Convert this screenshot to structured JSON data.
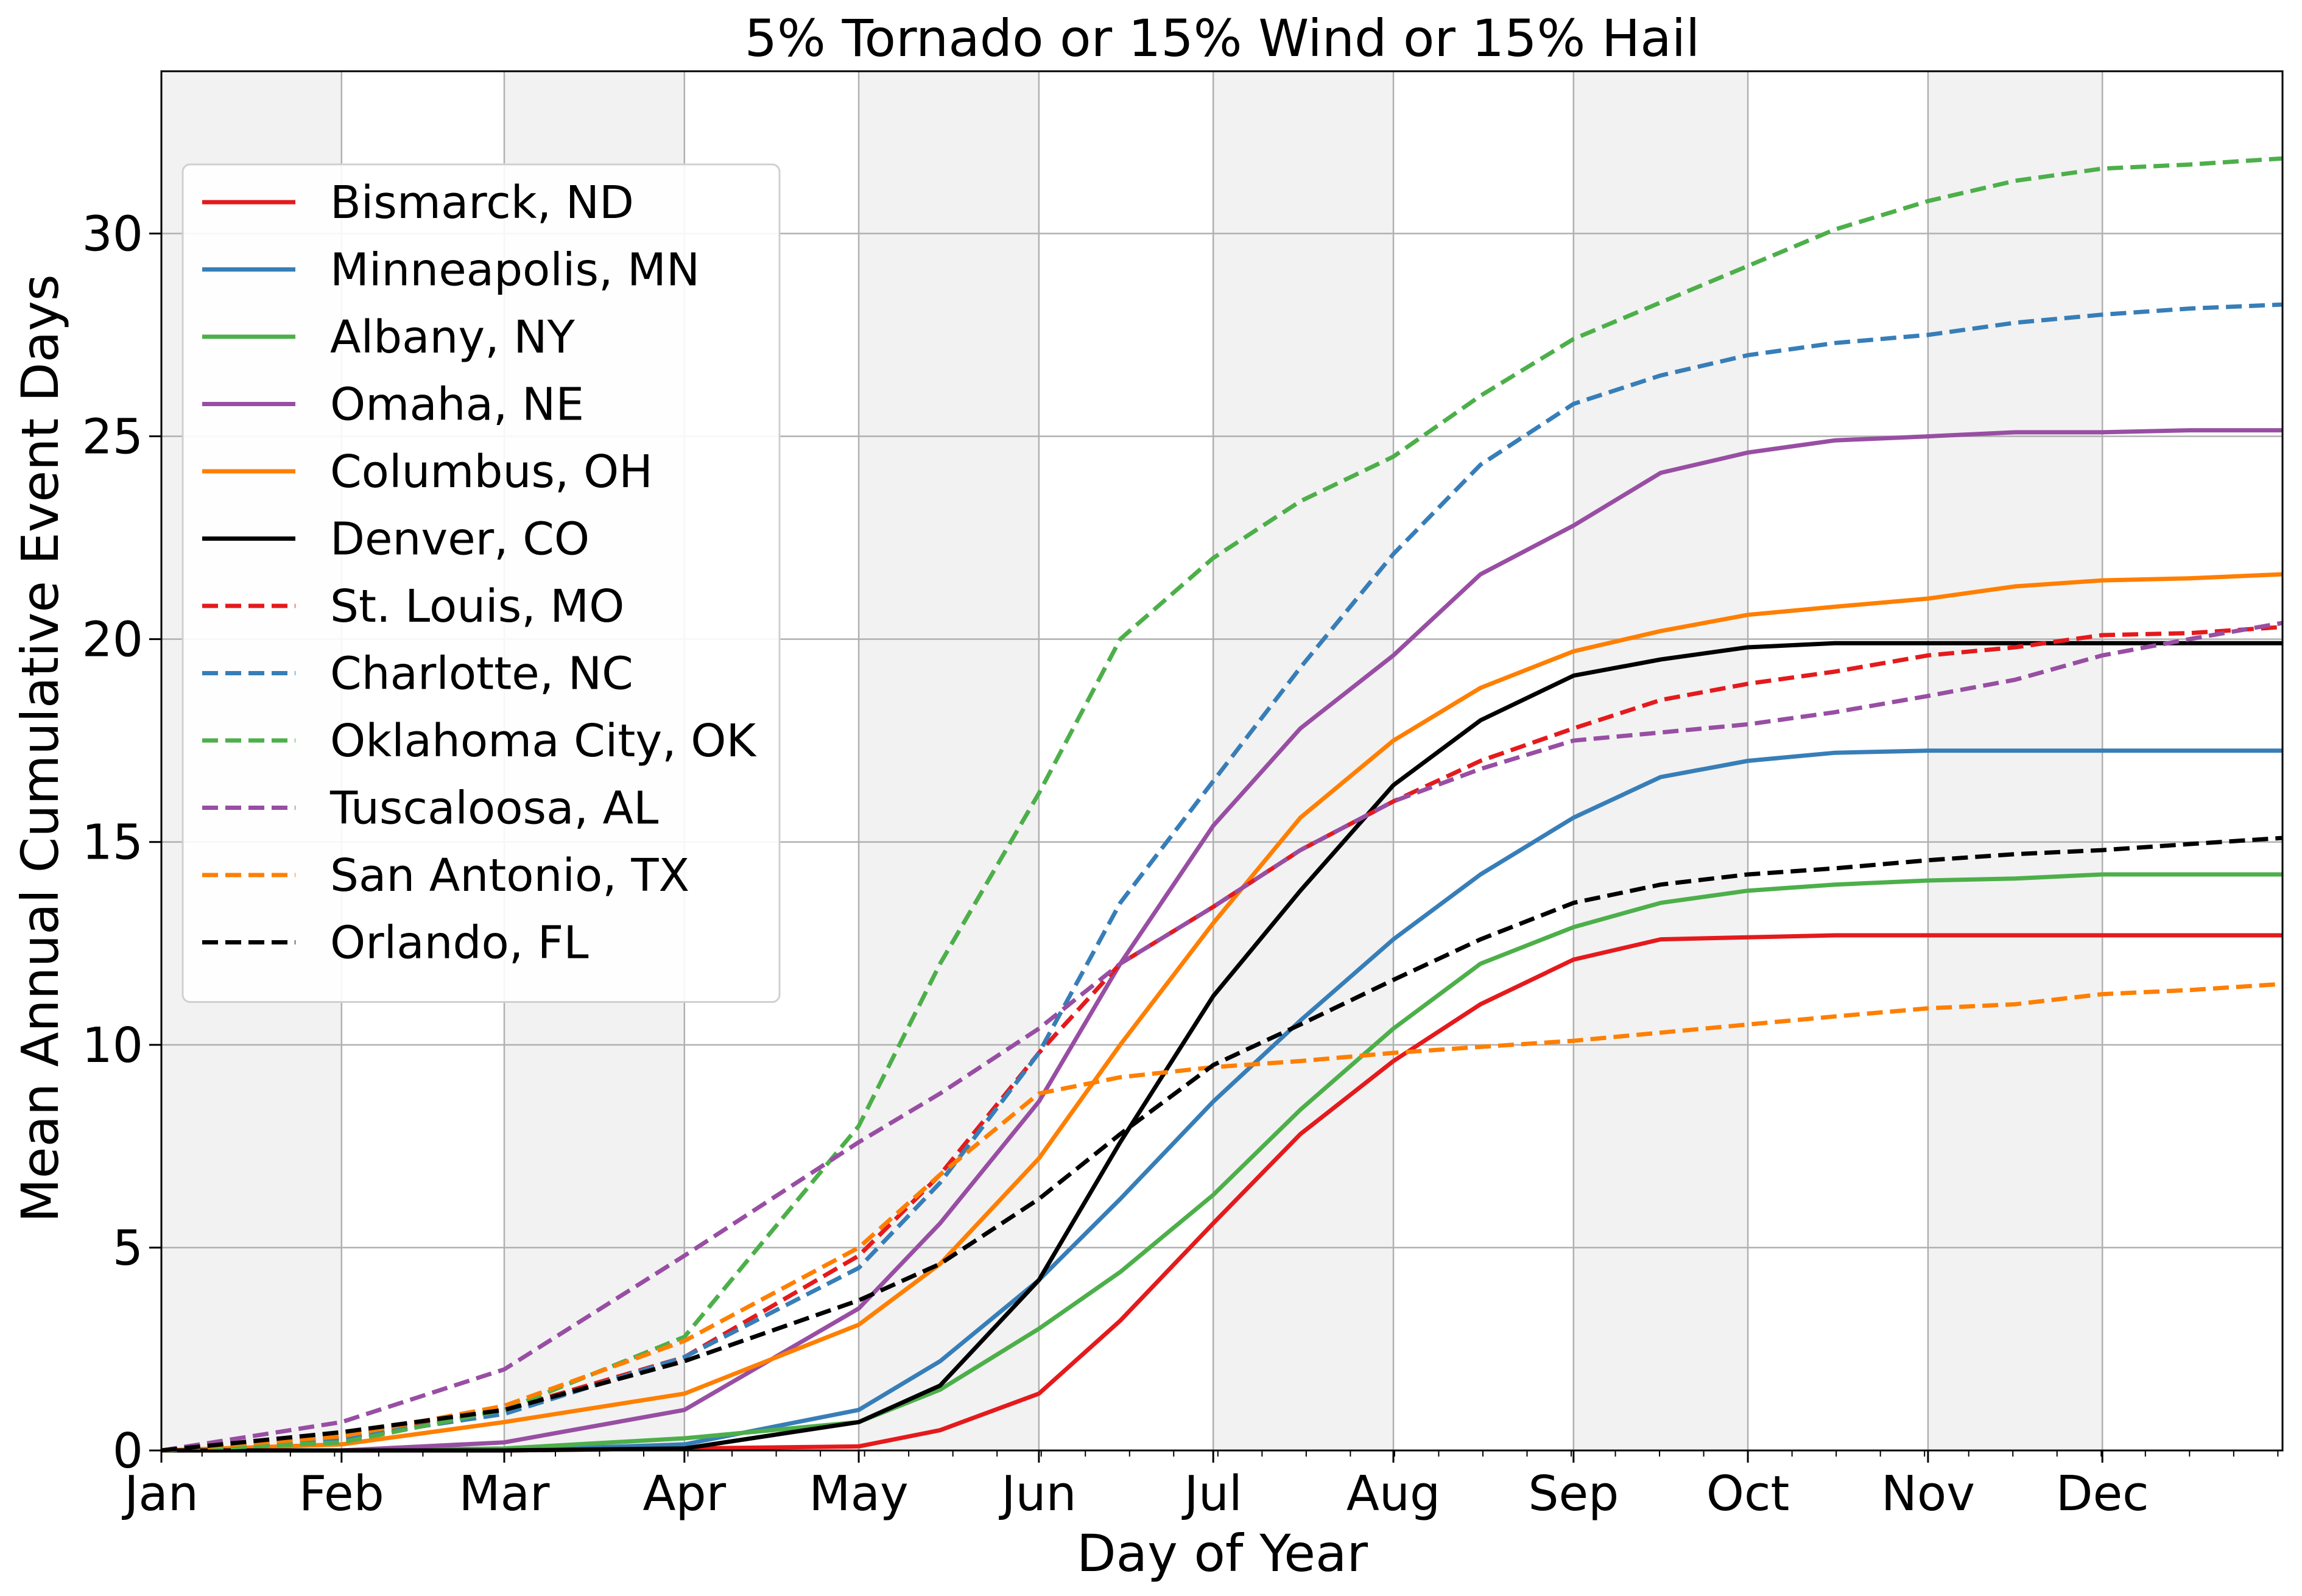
{
  "chart_data": {
    "type": "line",
    "title": "5% Tornado or 15% Wind or 15% Hail",
    "xlabel": "Day of Year",
    "ylabel": "Mean Annual Cumulative Event Days",
    "xlim": [
      1,
      366
    ],
    "ylim": [
      0,
      34
    ],
    "grid": true,
    "legend_position": "upper-left",
    "background_shading": "alternating months",
    "x_ticks": [
      {
        "label": "Jan",
        "day": 1
      },
      {
        "label": "Feb",
        "day": 32
      },
      {
        "label": "Mar",
        "day": 60
      },
      {
        "label": "Apr",
        "day": 91
      },
      {
        "label": "May",
        "day": 121
      },
      {
        "label": "Jun",
        "day": 152
      },
      {
        "label": "Jul",
        "day": 182
      },
      {
        "label": "Aug",
        "day": 213
      },
      {
        "label": "Sep",
        "day": 244
      },
      {
        "label": "Oct",
        "day": 274
      },
      {
        "label": "Nov",
        "day": 305
      },
      {
        "label": "Dec",
        "day": 335
      }
    ],
    "y_ticks": [
      0,
      5,
      10,
      15,
      20,
      25,
      30
    ],
    "x": [
      1,
      32,
      60,
      91,
      121,
      135,
      152,
      166,
      182,
      197,
      213,
      228,
      244,
      259,
      274,
      289,
      305,
      320,
      335,
      350,
      366
    ],
    "series": [
      {
        "name": "Bismarck, ND",
        "color": "#e41a1c",
        "dash": false,
        "values": [
          0,
          0,
          0,
          0.05,
          0.1,
          0.5,
          1.4,
          3.2,
          5.6,
          7.8,
          9.6,
          11.0,
          12.1,
          12.6,
          12.65,
          12.7,
          12.7,
          12.7,
          12.7,
          12.7,
          12.7
        ]
      },
      {
        "name": "Minneapolis, MN",
        "color": "#377eb8",
        "dash": false,
        "values": [
          0,
          0,
          0,
          0.15,
          1.0,
          2.2,
          4.2,
          6.2,
          8.6,
          10.6,
          12.6,
          14.2,
          15.6,
          16.6,
          17.0,
          17.2,
          17.25,
          17.25,
          17.25,
          17.25,
          17.25
        ]
      },
      {
        "name": "Albany, NY",
        "color": "#4daf4a",
        "dash": false,
        "values": [
          0,
          0,
          0.05,
          0.3,
          0.7,
          1.5,
          3.0,
          4.4,
          6.3,
          8.4,
          10.4,
          12.0,
          12.9,
          13.5,
          13.8,
          13.95,
          14.05,
          14.1,
          14.2,
          14.2,
          14.2
        ]
      },
      {
        "name": "Omaha, NE",
        "color": "#984ea3",
        "dash": false,
        "values": [
          0,
          0,
          0.2,
          1.0,
          3.5,
          5.6,
          8.6,
          12.0,
          15.4,
          17.8,
          19.6,
          21.6,
          22.8,
          24.1,
          24.6,
          24.9,
          25.0,
          25.1,
          25.1,
          25.15,
          25.15
        ]
      },
      {
        "name": "Columbus, OH",
        "color": "#ff7f00",
        "dash": false,
        "values": [
          0,
          0.15,
          0.7,
          1.4,
          3.1,
          4.6,
          7.2,
          10.0,
          13.0,
          15.6,
          17.5,
          18.8,
          19.7,
          20.2,
          20.6,
          20.8,
          21.0,
          21.3,
          21.45,
          21.5,
          21.6
        ]
      },
      {
        "name": "Denver, CO",
        "color": "#000000",
        "dash": false,
        "values": [
          0,
          0,
          0,
          0.05,
          0.7,
          1.6,
          4.2,
          7.6,
          11.2,
          13.8,
          16.4,
          18.0,
          19.1,
          19.5,
          19.8,
          19.9,
          19.9,
          19.9,
          19.9,
          19.9,
          19.9
        ]
      },
      {
        "name": "St. Louis, MO",
        "color": "#e41a1c",
        "dash": true,
        "values": [
          0,
          0.3,
          1.0,
          2.3,
          4.8,
          6.8,
          9.8,
          12.0,
          13.4,
          14.8,
          16.0,
          17.0,
          17.8,
          18.5,
          18.9,
          19.2,
          19.6,
          19.8,
          20.1,
          20.15,
          20.3
        ]
      },
      {
        "name": "Charlotte, NC",
        "color": "#377eb8",
        "dash": true,
        "values": [
          0,
          0.3,
          0.9,
          2.3,
          4.5,
          6.6,
          9.8,
          13.5,
          16.5,
          19.3,
          22.1,
          24.3,
          25.8,
          26.5,
          27.0,
          27.3,
          27.5,
          27.8,
          28.0,
          28.15,
          28.25
        ]
      },
      {
        "name": "Oklahoma City, OK",
        "color": "#4daf4a",
        "dash": true,
        "values": [
          0,
          0.2,
          1.0,
          2.8,
          8.0,
          12.0,
          16.2,
          20.0,
          22.0,
          23.4,
          24.5,
          26.0,
          27.4,
          28.3,
          29.2,
          30.1,
          30.8,
          31.3,
          31.6,
          31.7,
          31.85
        ]
      },
      {
        "name": "Tuscaloosa, AL",
        "color": "#984ea3",
        "dash": true,
        "values": [
          0,
          0.7,
          2.0,
          4.8,
          7.6,
          8.8,
          10.4,
          12.0,
          13.4,
          14.8,
          16.0,
          16.8,
          17.5,
          17.7,
          17.9,
          18.2,
          18.6,
          19.0,
          19.6,
          20.0,
          20.4
        ]
      },
      {
        "name": "San Antonio, TX",
        "color": "#ff7f00",
        "dash": true,
        "values": [
          0,
          0.35,
          1.1,
          2.7,
          5.0,
          6.8,
          8.8,
          9.2,
          9.45,
          9.6,
          9.8,
          9.95,
          10.1,
          10.3,
          10.5,
          10.7,
          10.9,
          11.0,
          11.25,
          11.35,
          11.5
        ]
      },
      {
        "name": "Orlando, FL",
        "color": "#000000",
        "dash": true,
        "values": [
          0,
          0.45,
          1.0,
          2.2,
          3.7,
          4.6,
          6.2,
          7.8,
          9.5,
          10.5,
          11.6,
          12.6,
          13.5,
          13.95,
          14.2,
          14.35,
          14.55,
          14.7,
          14.8,
          14.95,
          15.1
        ]
      }
    ]
  }
}
